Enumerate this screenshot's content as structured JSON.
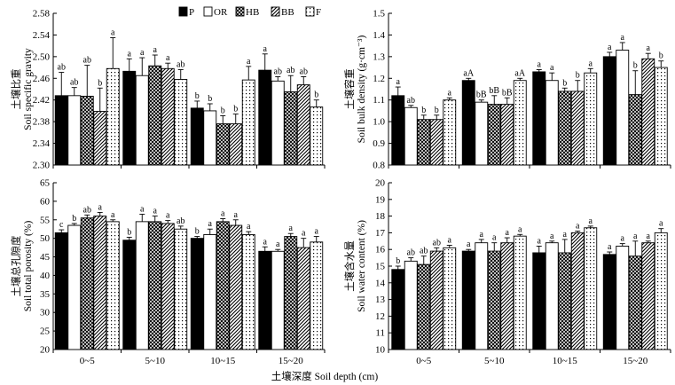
{
  "figure": {
    "xlabel": "土壤深度 Soil depth (cm)",
    "legend": [
      "P",
      "OR",
      "HB",
      "BB",
      "F"
    ]
  },
  "chart_data": [
    {
      "type": "bar",
      "panel": "top-left",
      "categories": [
        "0~5",
        "5~10",
        "10~15",
        "15~20"
      ],
      "ylabel_cn": "土壤比重",
      "ylabel_en": "Soil specific gravity",
      "ylim": [
        2.3,
        2.58
      ],
      "yticks": [
        "2.30",
        "2.34",
        "2.38",
        "2.42",
        "2.46",
        "2.50",
        "2.54",
        "2.58"
      ],
      "grid": false,
      "legend_position": "top",
      "series": [
        {
          "name": "P",
          "values": [
            2.428,
            2.473,
            2.405,
            2.475
          ],
          "errors": [
            0.043,
            0.023,
            0.013,
            0.03
          ],
          "labels": [
            "ab",
            "a",
            "b",
            "a"
          ]
        },
        {
          "name": "OR",
          "values": [
            2.428,
            2.465,
            2.4,
            2.455
          ],
          "errors": [
            0.015,
            0.033,
            0.013,
            0.008
          ],
          "labels": [
            "ab",
            "a",
            "b",
            "ab"
          ]
        },
        {
          "name": "HB",
          "values": [
            2.427,
            2.483,
            2.376,
            2.435
          ],
          "errors": [
            0.057,
            0.02,
            0.015,
            0.03
          ],
          "labels": [
            "ab",
            "a",
            "b",
            "ab"
          ]
        },
        {
          "name": "BB",
          "values": [
            2.399,
            2.478,
            2.376,
            2.448
          ],
          "errors": [
            0.043,
            0.01,
            0.018,
            0.015
          ],
          "labels": [
            "b",
            "a",
            "b",
            "ab"
          ]
        },
        {
          "name": "F",
          "values": [
            2.478,
            2.458,
            2.457,
            2.407
          ],
          "errors": [
            0.057,
            0.018,
            0.025,
            0.013
          ],
          "labels": [
            "a",
            "ab",
            "a",
            "b"
          ]
        }
      ]
    },
    {
      "type": "bar",
      "panel": "top-right",
      "categories": [
        "0~5",
        "5~10",
        "10~15",
        "15~20"
      ],
      "ylabel_cn": "土壤容重",
      "ylabel_en": "Soil bulk density (g·cm⁻³)",
      "ylim": [
        0.8,
        1.5
      ],
      "yticks": [
        "0.8",
        "0.9",
        "1.0",
        "1.1",
        "1.2",
        "1.3",
        "1.4",
        "1.5"
      ],
      "grid": false,
      "series": [
        {
          "name": "P",
          "values": [
            1.12,
            1.19,
            1.23,
            1.3
          ],
          "errors": [
            0.04,
            0.01,
            0.01,
            0.02
          ],
          "labels": [
            "a",
            "aA",
            "a",
            "a"
          ]
        },
        {
          "name": "OR",
          "values": [
            1.065,
            1.09,
            1.19,
            1.33
          ],
          "errors": [
            0.01,
            0.01,
            0.035,
            0.035
          ],
          "labels": [
            "ab",
            "bB",
            "a",
            "a"
          ]
        },
        {
          "name": "HB",
          "values": [
            1.01,
            1.08,
            1.14,
            1.125
          ],
          "errors": [
            0.02,
            0.04,
            0.015,
            0.11
          ],
          "labels": [
            "b",
            "bB",
            "b",
            "b"
          ]
        },
        {
          "name": "BB",
          "values": [
            1.01,
            1.08,
            1.14,
            1.29
          ],
          "errors": [
            0.02,
            0.03,
            0.05,
            0.025
          ],
          "labels": [
            "b",
            "bB",
            "b",
            "a"
          ]
        },
        {
          "name": "F",
          "values": [
            1.1,
            1.19,
            1.225,
            1.25
          ],
          "errors": [
            0.01,
            0.01,
            0.02,
            0.03
          ],
          "labels": [
            "a",
            "aA",
            "a",
            "b"
          ]
        }
      ]
    },
    {
      "type": "bar",
      "panel": "bottom-left",
      "categories": [
        "0~5",
        "5~10",
        "10~15",
        "15~20"
      ],
      "ylabel_cn": "土壤总孔隙度",
      "ylabel_en": "Soil total porosity (%)",
      "ylim": [
        20,
        65
      ],
      "yticks": [
        "20",
        "25",
        "30",
        "35",
        "40",
        "45",
        "50",
        "55",
        "60",
        "65"
      ],
      "grid": false,
      "series": [
        {
          "name": "P",
          "values": [
            51.5,
            49.5,
            50.0,
            46.5
          ],
          "errors": [
            0.8,
            0.8,
            0.5,
            1.2
          ],
          "labels": [
            "c",
            "b",
            "b",
            "a"
          ]
        },
        {
          "name": "OR",
          "values": [
            53.5,
            54.5,
            51.0,
            46.5
          ],
          "errors": [
            0.5,
            2.0,
            1.5,
            0.5
          ],
          "labels": [
            "b",
            "a",
            "a",
            "a"
          ]
        },
        {
          "name": "HB",
          "values": [
            55.5,
            54.5,
            54.5,
            50.5
          ],
          "errors": [
            0.8,
            1.5,
            0.8,
            0.8
          ],
          "labels": [
            "ab",
            "a",
            "a",
            "a"
          ]
        },
        {
          "name": "BB",
          "values": [
            56.0,
            54.0,
            53.5,
            47.5
          ],
          "errors": [
            1.0,
            0.8,
            1.5,
            2.5
          ],
          "labels": [
            "a",
            "a",
            "a",
            "a"
          ]
        },
        {
          "name": "F",
          "values": [
            54.5,
            52.5,
            51.0,
            49.0
          ],
          "errors": [
            0.5,
            0.8,
            0.8,
            1.5
          ],
          "labels": [
            "a",
            "ab",
            "a",
            "a"
          ]
        }
      ]
    },
    {
      "type": "bar",
      "panel": "bottom-right",
      "categories": [
        "0~5",
        "5~10",
        "10~15",
        "15~20"
      ],
      "ylabel_cn": "土壤含水量",
      "ylabel_en": "Soil water content (%)",
      "ylim": [
        10,
        20
      ],
      "yticks": [
        "10",
        "11",
        "12",
        "13",
        "14",
        "15",
        "16",
        "17",
        "18",
        "19",
        "20"
      ],
      "grid": false,
      "series": [
        {
          "name": "P",
          "values": [
            14.8,
            15.9,
            15.8,
            15.7
          ],
          "errors": [
            0.2,
            0.1,
            0.4,
            0.15
          ],
          "labels": [
            "b",
            "a",
            "a",
            "a"
          ]
        },
        {
          "name": "OR",
          "values": [
            15.3,
            16.4,
            16.4,
            16.2
          ],
          "errors": [
            0.2,
            0.2,
            0.1,
            0.15
          ],
          "labels": [
            "ab",
            "a",
            "a",
            "a"
          ]
        },
        {
          "name": "HB",
          "values": [
            15.1,
            15.9,
            15.8,
            15.6
          ],
          "errors": [
            0.5,
            0.5,
            0.8,
            0.9
          ],
          "labels": [
            "ab",
            "a",
            "a",
            "a"
          ]
        },
        {
          "name": "BB",
          "values": [
            15.9,
            16.4,
            17.0,
            16.4
          ],
          "errors": [
            0.2,
            0.3,
            0.1,
            0.1
          ],
          "labels": [
            "ab",
            "a",
            "a",
            "a"
          ]
        },
        {
          "name": "F",
          "values": [
            16.1,
            16.8,
            17.3,
            17.0
          ],
          "errors": [
            0.15,
            0.1,
            0.1,
            0.25
          ],
          "labels": [
            "a",
            "a",
            "a",
            "a"
          ]
        }
      ]
    }
  ]
}
